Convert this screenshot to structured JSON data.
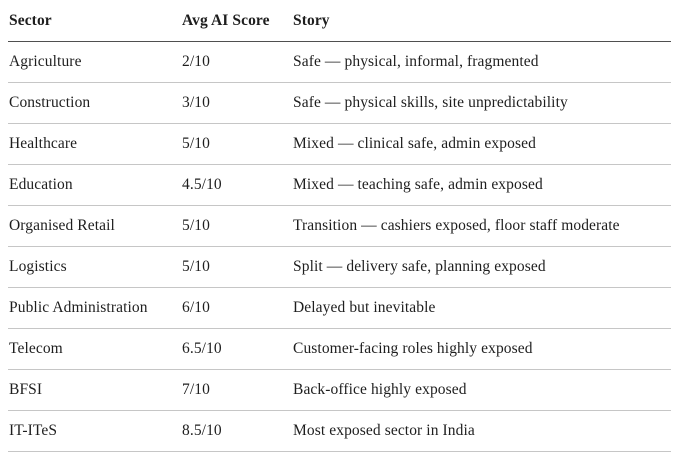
{
  "table": {
    "headers": {
      "sector": "Sector",
      "score": "Avg AI Score",
      "story": "Story"
    },
    "rows": [
      {
        "sector": "Agriculture",
        "score": "2/10",
        "story": "Safe — physical, informal, fragmented"
      },
      {
        "sector": "Construction",
        "score": "3/10",
        "story": "Safe — physical skills, site unpredictability"
      },
      {
        "sector": "Healthcare",
        "score": "5/10",
        "story": "Mixed — clinical safe, admin exposed"
      },
      {
        "sector": "Education",
        "score": "4.5/10",
        "story": "Mixed — teaching safe, admin exposed"
      },
      {
        "sector": "Organised Retail",
        "score": "5/10",
        "story": "Transition — cashiers exposed, floor staff moderate"
      },
      {
        "sector": "Logistics",
        "score": "5/10",
        "story": "Split — delivery safe, planning exposed"
      },
      {
        "sector": "Public Administration",
        "score": "6/10",
        "story": "Delayed but inevitable"
      },
      {
        "sector": "Telecom",
        "score": "6.5/10",
        "story": "Customer-facing roles highly exposed"
      },
      {
        "sector": "BFSI",
        "score": "7/10",
        "story": "Back-office highly exposed"
      },
      {
        "sector": "IT-ITeS",
        "score": "8.5/10",
        "story": "Most exposed sector in India"
      }
    ]
  },
  "chart_data": {
    "type": "table",
    "title": "",
    "columns": [
      "Sector",
      "Avg AI Score",
      "Story"
    ],
    "rows": [
      [
        "Agriculture",
        "2/10",
        "Safe — physical, informal, fragmented"
      ],
      [
        "Construction",
        "3/10",
        "Safe — physical skills, site unpredictability"
      ],
      [
        "Healthcare",
        "5/10",
        "Mixed — clinical safe, admin exposed"
      ],
      [
        "Education",
        "4.5/10",
        "Mixed — teaching safe, admin exposed"
      ],
      [
        "Organised Retail",
        "5/10",
        "Transition — cashiers exposed, floor staff moderate"
      ],
      [
        "Logistics",
        "5/10",
        "Split — delivery safe, planning exposed"
      ],
      [
        "Public Administration",
        "6/10",
        "Delayed but inevitable"
      ],
      [
        "Telecom",
        "6.5/10",
        "Customer-facing roles highly exposed"
      ],
      [
        "BFSI",
        "7/10",
        "Back-office highly exposed"
      ],
      [
        "IT-ITeS",
        "8.5/10",
        "Most exposed sector in India"
      ]
    ],
    "avg_ai_scores_numeric": {
      "Agriculture": 2,
      "Construction": 3,
      "Healthcare": 5,
      "Education": 4.5,
      "Organised Retail": 5,
      "Logistics": 5,
      "Public Administration": 6,
      "Telecom": 6.5,
      "BFSI": 7,
      "IT-ITeS": 8.5
    },
    "score_scale_max": 10
  },
  "colors": {
    "background": "#ffffff",
    "text": "#1e1e1e",
    "header_rule": "#4f4f4f",
    "row_rule": "#c6c6c6"
  }
}
